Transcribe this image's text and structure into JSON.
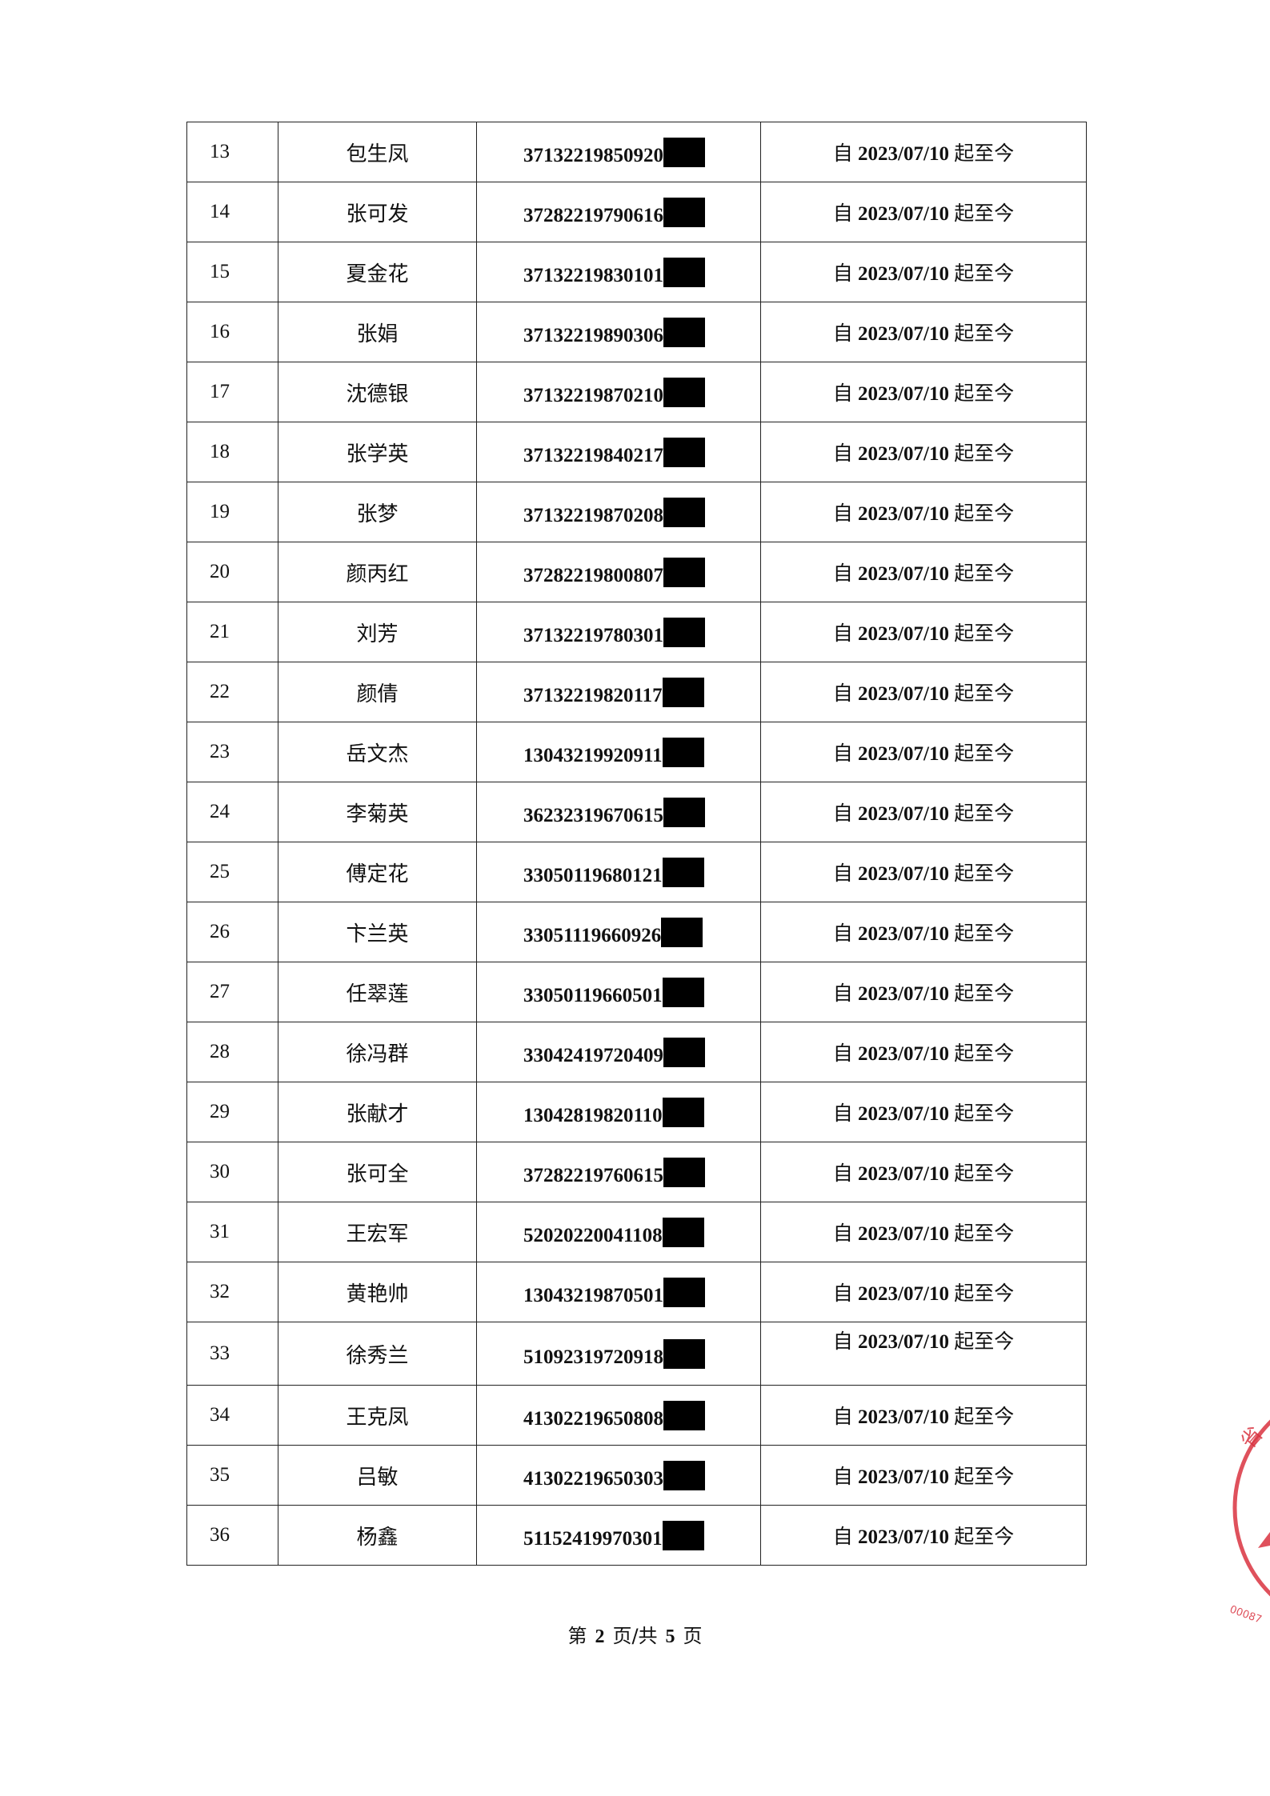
{
  "table": {
    "rows": [
      {
        "no": "13",
        "name": "包生凤",
        "id": "37132219850920",
        "date": "2023/07/10"
      },
      {
        "no": "14",
        "name": "张可发",
        "id": "37282219790616",
        "date": "2023/07/10"
      },
      {
        "no": "15",
        "name": "夏金花",
        "id": "37132219830101",
        "date": "2023/07/10"
      },
      {
        "no": "16",
        "name": "张娟",
        "id": "37132219890306",
        "date": "2023/07/10"
      },
      {
        "no": "17",
        "name": "沈德银",
        "id": "37132219870210",
        "date": "2023/07/10"
      },
      {
        "no": "18",
        "name": "张学英",
        "id": "37132219840217",
        "date": "2023/07/10"
      },
      {
        "no": "19",
        "name": "张梦",
        "id": "37132219870208",
        "date": "2023/07/10"
      },
      {
        "no": "20",
        "name": "颜丙红",
        "id": "37282219800807",
        "date": "2023/07/10"
      },
      {
        "no": "21",
        "name": "刘芳",
        "id": "37132219780301",
        "date": "2023/07/10"
      },
      {
        "no": "22",
        "name": "颜倩",
        "id": "37132219820117",
        "date": "2023/07/10"
      },
      {
        "no": "23",
        "name": "岳文杰",
        "id": "13043219920911",
        "date": "2023/07/10"
      },
      {
        "no": "24",
        "name": "李菊英",
        "id": "36232319670615",
        "date": "2023/07/10"
      },
      {
        "no": "25",
        "name": "傅定花",
        "id": "33050119680121",
        "date": "2023/07/10"
      },
      {
        "no": "26",
        "name": "卞兰英",
        "id": "33051119660926",
        "date": "2023/07/10"
      },
      {
        "no": "27",
        "name": "任翠莲",
        "id": "33050119660501",
        "date": "2023/07/10"
      },
      {
        "no": "28",
        "name": "徐冯群",
        "id": "33042419720409",
        "date": "2023/07/10"
      },
      {
        "no": "29",
        "name": "张献才",
        "id": "13042819820110",
        "date": "2023/07/10"
      },
      {
        "no": "30",
        "name": "张可全",
        "id": "37282219760615",
        "date": "2023/07/10"
      },
      {
        "no": "31",
        "name": "王宏军",
        "id": "52020220041108",
        "date": "2023/07/10"
      },
      {
        "no": "32",
        "name": "黄艳帅",
        "id": "13043219870501",
        "date": "2023/07/10"
      },
      {
        "no": "33",
        "name": "徐秀兰",
        "id": "51092319720918",
        "date": "2023/07/10"
      },
      {
        "no": "34",
        "name": "王克凤",
        "id": "41302219650808",
        "date": "2023/07/10"
      },
      {
        "no": "35",
        "name": "吕敏",
        "id": "41302219650303",
        "date": "2023/07/10"
      },
      {
        "no": "36",
        "name": "杨鑫",
        "id": "51152419970301",
        "date": "2023/07/10"
      }
    ],
    "date_prefix": "自",
    "date_suffix": "起至今"
  },
  "footer": {
    "prefix": "第",
    "page": "2",
    "mid": "页/共",
    "total": "5",
    "suffix": "页"
  },
  "stamp": {
    "color": "#d9323f",
    "text": "00087"
  }
}
